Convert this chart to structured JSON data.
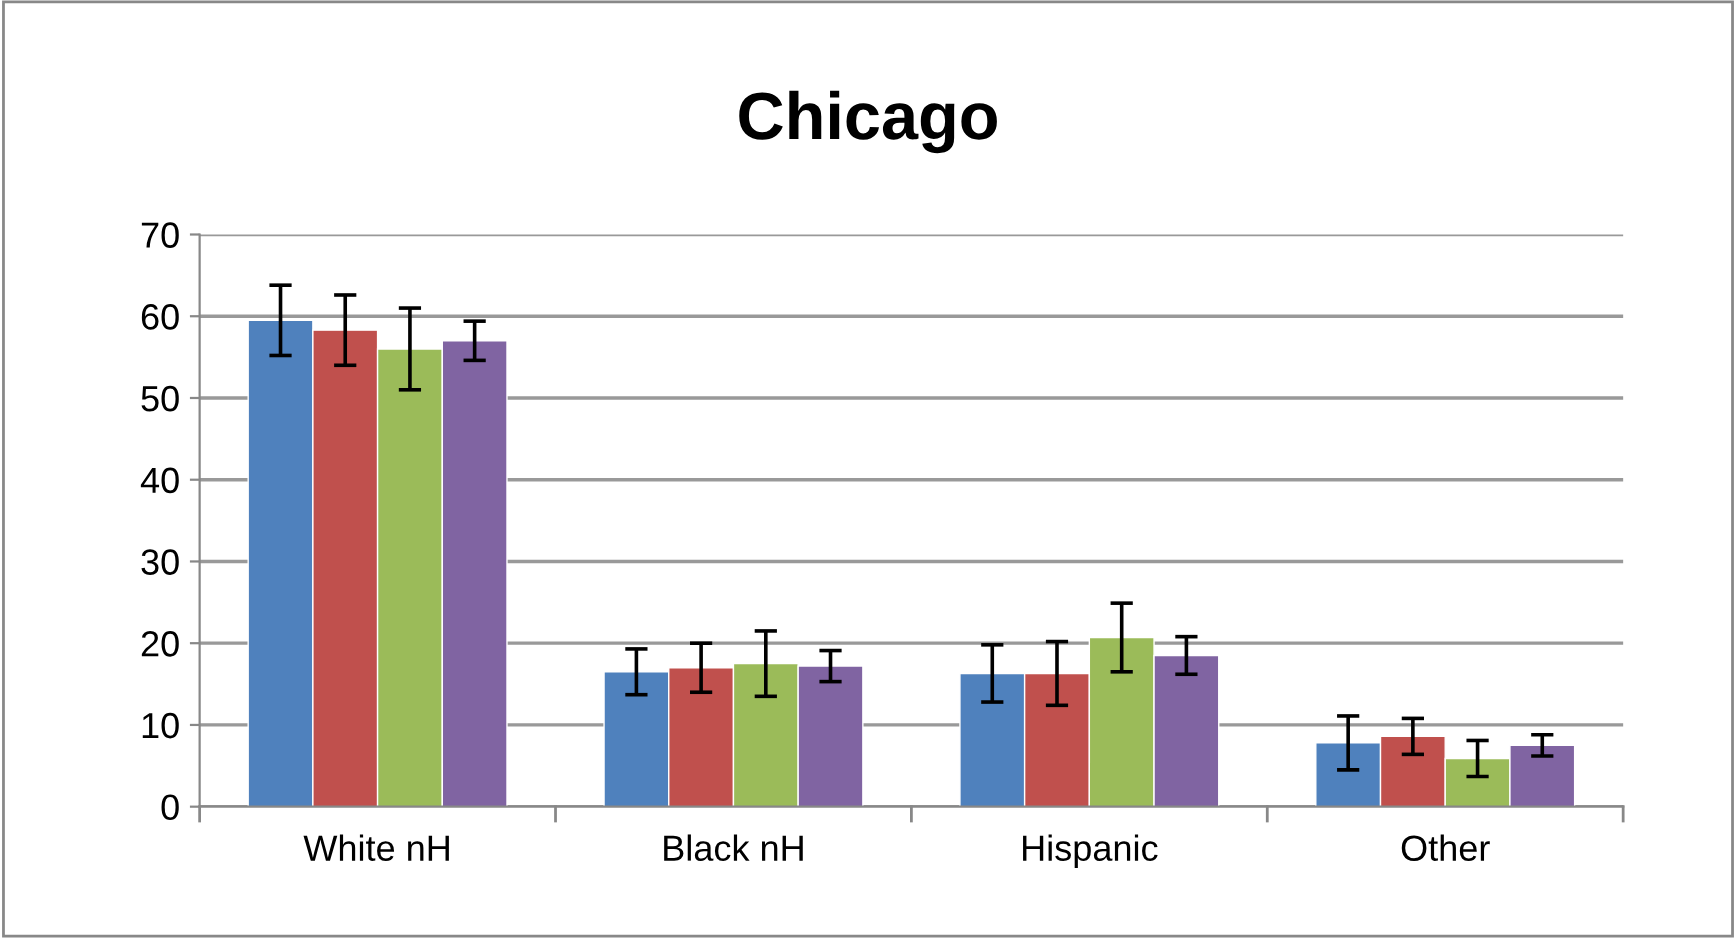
{
  "chart_data": {
    "type": "bar",
    "title": "Chicago",
    "categories": [
      "White nH",
      "Black nH",
      "Hispanic",
      "Other"
    ],
    "series": [
      {
        "color": "#4f81bd",
        "values": [
          59.5,
          16.5,
          16.3,
          7.8
        ],
        "errors": [
          4.3,
          2.8,
          3.5,
          3.3
        ]
      },
      {
        "color": "#c0504d",
        "values": [
          58.3,
          17.0,
          16.3,
          8.6
        ],
        "errors": [
          4.3,
          3.0,
          3.9,
          2.2
        ]
      },
      {
        "color": "#9bbb59",
        "values": [
          56.0,
          17.5,
          20.7,
          5.9
        ],
        "errors": [
          5.0,
          4.0,
          4.2,
          2.2
        ]
      },
      {
        "color": "#8064a2",
        "values": [
          57.0,
          17.2,
          18.5,
          7.5
        ],
        "errors": [
          2.4,
          1.9,
          2.3,
          1.3
        ]
      }
    ],
    "ylim": [
      0,
      70
    ],
    "yticks": [
      0,
      10,
      20,
      30,
      40,
      50,
      60,
      70
    ],
    "grid": "y",
    "legend": false
  }
}
